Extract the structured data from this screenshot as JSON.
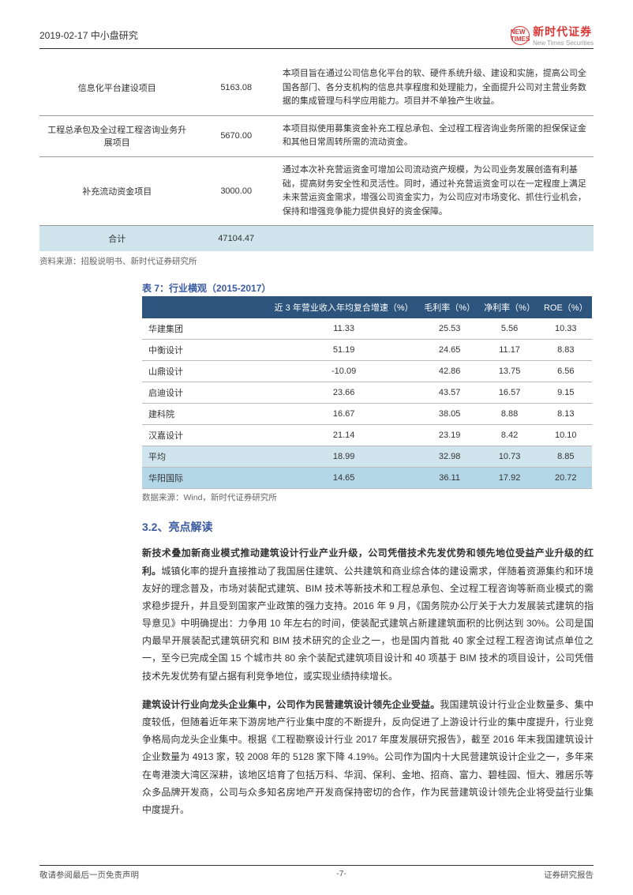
{
  "header": {
    "date_category": "2019-02-17  中小盘研究",
    "logo_abbr": "NEW TIMES",
    "logo_cn": "新时代证券",
    "logo_en": "New Times Securities"
  },
  "table1": {
    "rows": [
      {
        "name": "信息化平台建设项目",
        "amount": "5163.08",
        "desc": "本项目旨在通过公司信息化平台的软、硬件系统升级、建设和实施，提高公司全国各部门、各分支机构的信息共享程度和处理能力，全面提升公司对主营业务数据的集成管理与科学应用能力。项目并不单独产生收益。"
      },
      {
        "name": "工程总承包及全过程工程咨询业务升展项目",
        "amount": "5670.00",
        "desc": "本项目拟使用募集资金补充工程总承包、全过程工程咨询业务所需的担保保证金和其他日常周转所需的流动资金。"
      },
      {
        "name": "补充流动资金项目",
        "amount": "3000.00",
        "desc": "通过本次补充营运资金可增加公司流动资产规模，为公司业务发展创造有利基础，提高财务安全性和灵活性。同时，通过补充营运资金可以在一定程度上满足未来营运资金需求，增强公司资金实力，为公司应对市场变化、抓住行业机会，保持和增强竞争能力提供良好的资金保障。"
      }
    ],
    "total_label": "合计",
    "total_amount": "47104.47",
    "source": "资料来源：招股说明书、新时代证券研究所"
  },
  "table2": {
    "title": "表 7：行业横观（2015-2017）",
    "headers": [
      "",
      "近 3 年营业收入年均复合增速（%）",
      "毛利率（%）",
      "净利率（%）",
      "ROE（%）"
    ],
    "rows": [
      [
        "华建集团",
        "11.33",
        "25.53",
        "5.56",
        "10.33"
      ],
      [
        "中衡设计",
        "51.19",
        "24.65",
        "11.17",
        "8.83"
      ],
      [
        "山鼎设计",
        "-10.09",
        "42.86",
        "13.75",
        "6.56"
      ],
      [
        "启迪设计",
        "23.66",
        "43.57",
        "16.57",
        "9.15"
      ],
      [
        "建科院",
        "16.67",
        "38.05",
        "8.88",
        "8.13"
      ],
      [
        "汉嘉设计",
        "21.14",
        "23.19",
        "8.42",
        "10.10"
      ]
    ],
    "avg_row": [
      "平均",
      "18.99",
      "32.98",
      "10.73",
      "8.85"
    ],
    "highlight_row": [
      "华阳国际",
      "14.65",
      "36.11",
      "17.92",
      "20.72"
    ],
    "source": "数据来源：Wind，新时代证券研究所"
  },
  "section": {
    "heading": "3.2、亮点解读",
    "para1_lead": "新技术叠加新商业模式推动建筑设计行业产业升级，公司凭借技术先发优势和领先地位受益产业升级的红利。",
    "para1_rest": "城镇化率的提升直接推动了我国居住建筑、公共建筑和商业综合体的建设需求，伴随着资源集约和环境友好的理念普及，市场对装配式建筑、BIM 技术等新技术和工程总承包、全过程工程咨询等新商业模式的需求稳步提升，并且受到国家产业政策的强力支持。2016 年 9 月，《国务院办公厅关于大力发展装式建筑的指导意见》中明确提出：力争用 10 年左右的时间，使装配式建筑占新建建筑面积的比例达到 30%。公司是国内最早开展装配式建筑研究和 BIM 技术研究的企业之一，也是国内首批 40 家全过程工程咨询试点单位之一，至今已完成全国 15 个城市共 80 余个装配式建筑项目设计和 40 项基于 BIM 技术的项目设计，公司凭借技术先发优势有望占据有利竞争地位，或实现业绩持续增长。",
    "para2_lead": "建筑设计行业向龙头企业集中，公司作为民营建筑设计领先企业受益。",
    "para2_rest": "我国建筑设计行业企业数量多、集中度较低，但随着近年来下游房地产行业集中度的不断提升，反向促进了上游设计行业的集中度提升，行业竞争格局向龙头企业集中。根据《工程勘察设计行业 2017 年度发展研究报告》，截至 2016 年末我国建筑设计企业数量为 4913 家，较 2008 年的 5128 家下降 4.19%。公司作为国内十大民营建筑设计企业之一，多年来在粤港澳大湾区深耕，该地区培育了包括万科、华润、保利、金地、招商、富力、碧桂园、恒大、雅居乐等众多品牌开发商，公司与众多知名房地产开发商保持密切的合作，作为民营建筑设计领先企业将受益行业集中度提升。"
  },
  "footer": {
    "left": "敬请参阅最后一页免责声明",
    "center": "-7-",
    "right": "证券研究报告"
  }
}
